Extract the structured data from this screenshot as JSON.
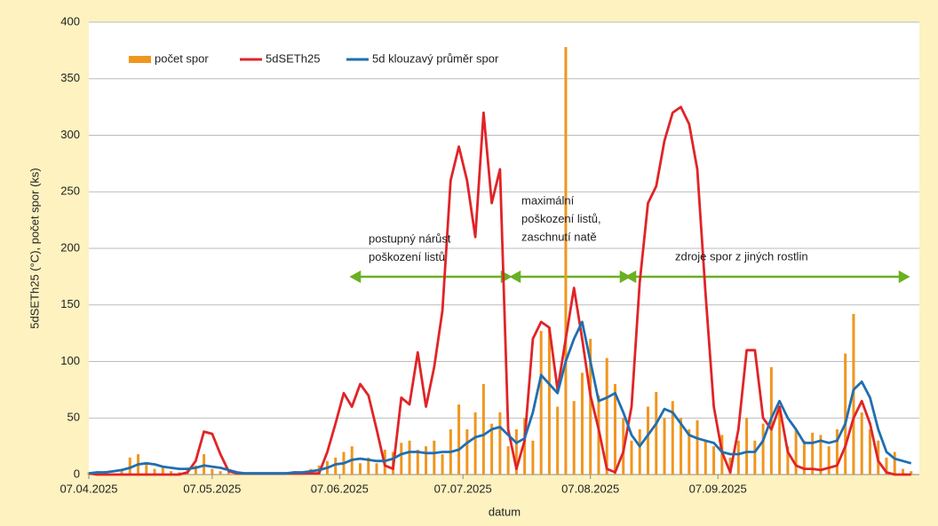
{
  "chart_data": {
    "type": "bar-line",
    "y_label": "5dSETh25 (°C), počet spor (ks)",
    "x_label": "datum",
    "x": [
      "07.04.2025",
      "09.04.2025",
      "11.04.2025",
      "13.04.2025",
      "15.04.2025",
      "17.04.2025",
      "19.04.2025",
      "21.04.2025",
      "23.04.2025",
      "25.04.2025",
      "27.04.2025",
      "29.04.2025",
      "01.05.2025",
      "03.05.2025",
      "05.05.2025",
      "07.05.2025",
      "09.05.2025",
      "11.05.2025",
      "13.05.2025",
      "15.05.2025",
      "17.05.2025",
      "19.05.2025",
      "21.05.2025",
      "23.05.2025",
      "25.05.2025",
      "27.05.2025",
      "29.05.2025",
      "31.05.2025",
      "02.06.2025",
      "04.06.2025",
      "06.06.2025",
      "08.06.2025",
      "10.06.2025",
      "12.06.2025",
      "14.06.2025",
      "16.06.2025",
      "18.06.2025",
      "20.06.2025",
      "22.06.2025",
      "24.06.2025",
      "26.06.2025",
      "28.06.2025",
      "30.06.2025",
      "02.07.2025",
      "04.07.2025",
      "06.07.2025",
      "08.07.2025",
      "10.07.2025",
      "12.07.2025",
      "14.07.2025",
      "16.07.2025",
      "18.07.2025",
      "20.07.2025",
      "22.07.2025",
      "24.07.2025",
      "26.07.2025",
      "28.07.2025",
      "30.07.2025",
      "01.08.2025",
      "03.08.2025",
      "05.08.2025",
      "07.08.2025",
      "09.08.2025",
      "11.08.2025",
      "13.08.2025",
      "15.08.2025",
      "17.08.2025",
      "19.08.2025",
      "21.08.2025",
      "23.08.2025",
      "25.08.2025",
      "27.08.2025",
      "29.08.2025",
      "31.08.2025",
      "02.09.2025",
      "04.09.2025",
      "06.09.2025",
      "08.09.2025",
      "10.09.2025",
      "12.09.2025",
      "14.09.2025",
      "16.09.2025",
      "18.09.2025",
      "20.09.2025",
      "22.09.2025",
      "24.09.2025",
      "26.09.2025",
      "28.09.2025",
      "30.09.2025",
      "02.10.2025",
      "04.10.2025",
      "06.10.2025",
      "08.10.2025",
      "10.10.2025",
      "12.10.2025",
      "14.10.2025",
      "16.10.2025",
      "18.10.2025",
      "20.10.2025",
      "22.10.2025",
      "24.10.2025"
    ],
    "series": [
      {
        "name": "počet spor",
        "kind": "bar",
        "color": "#f0961e",
        "values": [
          2,
          0,
          3,
          0,
          5,
          15,
          18,
          10,
          5,
          6,
          3,
          2,
          5,
          8,
          18,
          5,
          3,
          2,
          1,
          0,
          0,
          1,
          0,
          0,
          2,
          3,
          0,
          5,
          8,
          12,
          15,
          20,
          25,
          10,
          15,
          10,
          22,
          20,
          28,
          30,
          22,
          25,
          30,
          18,
          40,
          62,
          40,
          55,
          80,
          45,
          55,
          25,
          40,
          50,
          30,
          127,
          130,
          60,
          378,
          65,
          90,
          120,
          70,
          103,
          80,
          50,
          30,
          40,
          60,
          73,
          50,
          65,
          50,
          40,
          48,
          30,
          25,
          35,
          15,
          30,
          50,
          30,
          45,
          95,
          60,
          25,
          40,
          30,
          37,
          35,
          25,
          40,
          107,
          142,
          55,
          40,
          30,
          15,
          20,
          5,
          3
        ]
      },
      {
        "name": "5dSETh25",
        "kind": "line",
        "color": "#e02428",
        "values": [
          1,
          0,
          0,
          0,
          0,
          0,
          0,
          0,
          0,
          0,
          0,
          0,
          2,
          12,
          38,
          36,
          18,
          3,
          1,
          1,
          1,
          1,
          1,
          1,
          1,
          1,
          1,
          1,
          1,
          20,
          45,
          72,
          60,
          80,
          70,
          40,
          8,
          5,
          68,
          62,
          108,
          60,
          95,
          145,
          260,
          290,
          260,
          210,
          320,
          240,
          270,
          40,
          5,
          30,
          120,
          135,
          130,
          75,
          120,
          165,
          120,
          70,
          40,
          5,
          2,
          20,
          60,
          170,
          240,
          255,
          295,
          320,
          325,
          310,
          270,
          160,
          60,
          20,
          2,
          40,
          110,
          110,
          50,
          40,
          60,
          20,
          8,
          5,
          5,
          4,
          6,
          8,
          25,
          50,
          65,
          45,
          12,
          2,
          0,
          0,
          0
        ]
      },
      {
        "name": "5d klouzavý průměr spor",
        "kind": "line",
        "color": "#1f6fb0",
        "values": [
          1,
          2,
          2,
          3,
          4,
          6,
          9,
          10,
          9,
          7,
          6,
          5,
          5,
          6,
          8,
          7,
          6,
          4,
          2,
          1,
          1,
          1,
          1,
          1,
          1,
          2,
          2,
          3,
          4,
          6,
          9,
          10,
          13,
          14,
          13,
          12,
          12,
          14,
          18,
          20,
          20,
          19,
          19,
          20,
          20,
          22,
          28,
          33,
          35,
          40,
          42,
          35,
          28,
          32,
          55,
          88,
          80,
          72,
          100,
          120,
          135,
          100,
          65,
          68,
          72,
          55,
          35,
          25,
          35,
          45,
          58,
          55,
          45,
          35,
          32,
          30,
          28,
          20,
          18,
          18,
          20,
          20,
          30,
          50,
          65,
          50,
          40,
          28,
          28,
          30,
          28,
          30,
          45,
          75,
          82,
          68,
          40,
          20,
          14,
          12,
          10
        ]
      }
    ],
    "xlim": [
      "07.04.2025",
      "26.10.2025"
    ],
    "xticks": [
      "07.04.2025",
      "07.05.2025",
      "07.06.2025",
      "07.07.2025",
      "07.08.2025",
      "07.09.2025"
    ],
    "ylim": [
      0,
      400
    ],
    "yticks": [
      0,
      50,
      100,
      150,
      200,
      250,
      300,
      350,
      400
    ],
    "grid": true,
    "legend": "top-left",
    "annotations": [
      {
        "lines": [
          "postupný nárůst",
          "poškození listů"
        ]
      },
      {
        "lines": [
          "maximální",
          "poškození listů,",
          "zaschnutí natě"
        ]
      },
      {
        "lines": [
          "zdroje spor z jiných rostlin"
        ]
      }
    ]
  }
}
